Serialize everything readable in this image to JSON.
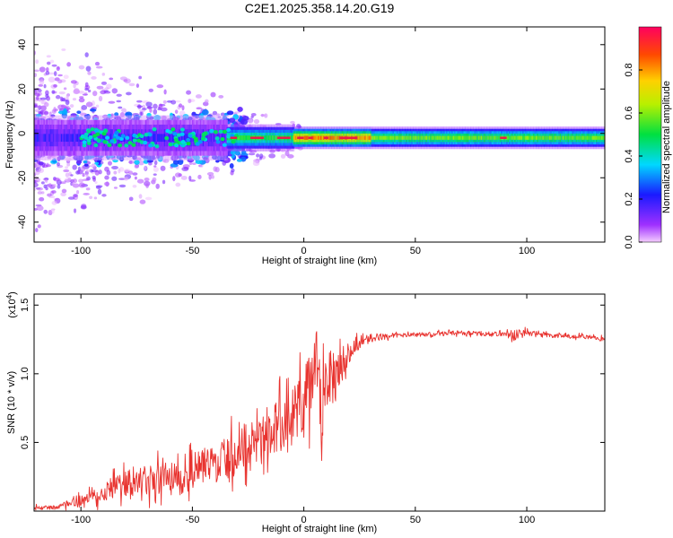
{
  "title": "C2E1.2025.358.14.20.G19",
  "colors": {
    "snr_line": "#e8322e",
    "signal_peak": "#e8194a",
    "axis": "#000000",
    "background": "#ffffff"
  },
  "chart_data": [
    {
      "type": "heatmap",
      "xlabel": "Height of straight line (km)",
      "ylabel": "Frequency (Hz)",
      "xlim": [
        -121,
        135
      ],
      "ylim": [
        -49,
        48
      ],
      "xticks": [
        -100,
        -50,
        0,
        50,
        100
      ],
      "xtick_labels": [
        "-100",
        "-50",
        "0",
        "50",
        "100"
      ],
      "yticks": [
        -40,
        -20,
        0,
        20,
        40
      ],
      "ytick_labels": [
        "-40",
        "-20",
        "0",
        "20",
        "40"
      ],
      "colorbar": {
        "label": "Normalized spectral amplitude",
        "range": [
          0,
          1
        ],
        "ticks": [
          0,
          0.2,
          0.4,
          0.6,
          0.8
        ],
        "tick_labels": [
          "0.0",
          "0.2",
          "0.4",
          "0.6",
          "0.8"
        ],
        "colormap": "rainbow"
      },
      "ridge": {
        "center_frequency_hz": -2,
        "peak_amplitude": 0.95,
        "segments": [
          {
            "from_km": -121,
            "to_km": -35,
            "halfwidth_hz": 5,
            "amplitude": 0.2
          },
          {
            "from_km": -35,
            "to_km": -5,
            "halfwidth_hz": 3,
            "amplitude": 0.55
          },
          {
            "from_km": -5,
            "to_km": 30,
            "halfwidth_hz": 2.5,
            "amplitude": 0.85
          },
          {
            "from_km": 30,
            "to_km": 135,
            "halfwidth_hz": 2.5,
            "amplitude": 0.6
          }
        ]
      }
    },
    {
      "type": "line",
      "xlabel": "Height of straight line (km)",
      "ylabel": "SNR (10 * v/v)",
      "y_scale_label": "(x10",
      "y_scale_exponent": "4",
      "y_scale_suffix": ")",
      "xlim": [
        -121,
        135
      ],
      "ylim": [
        0,
        1.58
      ],
      "xticks": [
        -100,
        -50,
        0,
        50,
        100
      ],
      "xtick_labels": [
        "-100",
        "-50",
        "0",
        "50",
        "100"
      ],
      "yticks": [
        0.5,
        1.0,
        1.5
      ],
      "ytick_labels": [
        "0.5",
        "1.0",
        "1.5"
      ],
      "series": [
        {
          "name": "SNR",
          "x": [
            -121,
            -110,
            -100,
            -90,
            -80,
            -70,
            -60,
            -50,
            -40,
            -30,
            -20,
            -10,
            -5,
            0,
            4,
            6,
            8,
            10,
            15,
            20,
            25,
            30,
            40,
            50,
            60,
            70,
            80,
            90,
            95,
            100,
            110,
            120,
            130,
            135
          ],
          "y": [
            0.02,
            0.03,
            0.08,
            0.15,
            0.2,
            0.22,
            0.25,
            0.3,
            0.35,
            0.42,
            0.55,
            0.62,
            0.7,
            0.8,
            0.95,
            1.15,
            0.6,
            0.95,
            1.05,
            1.15,
            1.22,
            1.26,
            1.28,
            1.28,
            1.29,
            1.3,
            1.29,
            1.29,
            1.28,
            1.3,
            1.28,
            1.27,
            1.26,
            1.25
          ],
          "noise": [
            0.02,
            0.02,
            0.05,
            0.1,
            0.12,
            0.14,
            0.15,
            0.16,
            0.18,
            0.2,
            0.22,
            0.25,
            0.28,
            0.3,
            0.3,
            0.3,
            0.35,
            0.3,
            0.2,
            0.1,
            0.05,
            0.04,
            0.02,
            0.02,
            0.02,
            0.02,
            0.02,
            0.02,
            0.06,
            0.03,
            0.02,
            0.02,
            0.02,
            0.02
          ]
        }
      ]
    }
  ]
}
